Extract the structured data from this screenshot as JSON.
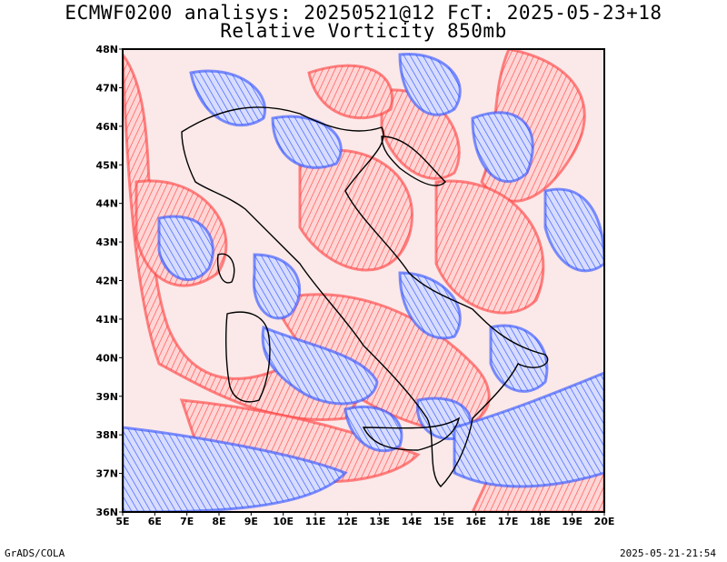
{
  "header": {
    "line1": "ECMWF0200 analisys: 20250521@12 FcT: 2025-05-23+18",
    "line2": "Relative Vorticity 850mb"
  },
  "map": {
    "lon_ticks": [
      "5E",
      "6E",
      "7E",
      "8E",
      "9E",
      "10E",
      "11E",
      "12E",
      "13E",
      "14E",
      "15E",
      "16E",
      "17E",
      "18E",
      "19E",
      "20E"
    ],
    "lat_ticks": [
      "48N",
      "47N",
      "46N",
      "45N",
      "44N",
      "43N",
      "42N",
      "41N",
      "40N",
      "39N",
      "38N",
      "37N",
      "36N"
    ],
    "colors": {
      "positive": "#ff3b3b",
      "negative": "#2a4dff",
      "coast": "#000000"
    }
  },
  "footer": {
    "left": "GrADS/COLA",
    "right": "2025-05-21-21:54"
  }
}
